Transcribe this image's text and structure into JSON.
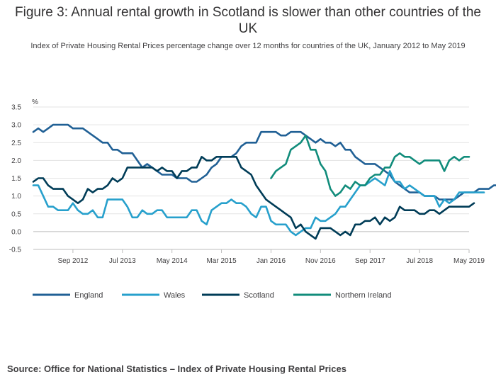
{
  "title": "Figure 3: Annual rental growth in Scotland is slower than other countries of the UK",
  "subtitle": "Index of Private Housing Rental Prices percentage change over 12 months for countries of the UK, January 2012 to May 2019",
  "source": "Source: Office for National Statistics – Index of Private Housing Rental Prices",
  "chart_data": {
    "type": "line",
    "ylabel": "%",
    "ylim": [
      -0.5,
      3.5
    ],
    "yticks": [
      "3.5",
      "3.0",
      "2.5",
      "2.0",
      "1.5",
      "1.0",
      "0.5",
      "0.0",
      "-0.5"
    ],
    "xlim": [
      "2012-01",
      "2019-05"
    ],
    "xticks": [
      {
        "date": "2012-09",
        "label": "Sep 2012"
      },
      {
        "date": "2013-07",
        "label": "Jul 2013"
      },
      {
        "date": "2014-05",
        "label": "May 2014"
      },
      {
        "date": "2015-03",
        "label": "Mar 2015"
      },
      {
        "date": "2016-01",
        "label": "Jan 2016"
      },
      {
        "date": "2016-11",
        "label": "Nov 2016"
      },
      {
        "date": "2017-09",
        "label": "Sep 2017"
      },
      {
        "date": "2018-07",
        "label": "Jul 2018"
      },
      {
        "date": "2019-05",
        "label": "May 2019"
      }
    ],
    "grid": true,
    "legend_position": "bottom",
    "series": [
      {
        "name": "England",
        "color": "#206095",
        "start": "2012-01",
        "values": [
          2.8,
          2.9,
          2.8,
          2.9,
          3.0,
          3.0,
          3.0,
          3.0,
          2.9,
          2.9,
          2.9,
          2.8,
          2.7,
          2.6,
          2.5,
          2.5,
          2.3,
          2.3,
          2.2,
          2.2,
          2.2,
          2.0,
          1.8,
          1.9,
          1.8,
          1.7,
          1.6,
          1.6,
          1.6,
          1.5,
          1.5,
          1.5,
          1.4,
          1.4,
          1.5,
          1.6,
          1.8,
          1.9,
          2.1,
          2.1,
          2.1,
          2.2,
          2.4,
          2.5,
          2.5,
          2.5,
          2.8,
          2.8,
          2.8,
          2.8,
          2.7,
          2.7,
          2.8,
          2.8,
          2.8,
          2.7,
          2.6,
          2.5,
          2.6,
          2.5,
          2.5,
          2.4,
          2.5,
          2.3,
          2.3,
          2.1,
          2.0,
          1.9,
          1.9,
          1.9,
          1.8,
          1.7,
          1.6,
          1.4,
          1.3,
          1.2,
          1.1,
          1.1,
          1.1,
          1.0,
          1.0,
          1.0,
          0.9,
          0.9,
          0.9,
          0.9,
          1.0,
          1.1,
          1.1,
          1.1,
          1.2,
          1.2,
          1.2,
          1.3,
          1.3
        ]
      },
      {
        "name": "Wales",
        "color": "#27a0cc",
        "start": "2012-01",
        "values": [
          1.3,
          1.3,
          1.0,
          0.7,
          0.7,
          0.6,
          0.6,
          0.6,
          0.8,
          0.6,
          0.5,
          0.5,
          0.6,
          0.4,
          0.4,
          0.9,
          0.9,
          0.9,
          0.9,
          0.7,
          0.4,
          0.4,
          0.6,
          0.5,
          0.5,
          0.6,
          0.6,
          0.4,
          0.4,
          0.4,
          0.4,
          0.4,
          0.6,
          0.6,
          0.3,
          0.2,
          0.6,
          0.7,
          0.8,
          0.8,
          0.9,
          0.8,
          0.8,
          0.7,
          0.5,
          0.4,
          0.7,
          0.7,
          0.3,
          0.2,
          0.2,
          0.2,
          0.0,
          -0.1,
          0.0,
          0.1,
          0.1,
          0.4,
          0.3,
          0.3,
          0.4,
          0.5,
          0.7,
          0.7,
          0.9,
          1.1,
          1.3,
          1.3,
          1.4,
          1.5,
          1.4,
          1.3,
          1.7,
          1.4,
          1.4,
          1.2,
          1.3,
          1.2,
          1.1,
          1.0,
          1.0,
          1.0,
          0.7,
          0.9,
          0.8,
          0.9,
          1.1,
          1.1,
          1.1,
          1.1,
          1.1,
          1.1
        ]
      },
      {
        "name": "Scotland",
        "color": "#003c57",
        "start": "2012-01",
        "values": [
          1.4,
          1.5,
          1.5,
          1.3,
          1.2,
          1.2,
          1.2,
          1.0,
          0.9,
          0.8,
          0.9,
          1.2,
          1.1,
          1.2,
          1.2,
          1.3,
          1.5,
          1.4,
          1.5,
          1.8,
          1.8,
          1.8,
          1.8,
          1.8,
          1.8,
          1.7,
          1.8,
          1.7,
          1.7,
          1.5,
          1.7,
          1.7,
          1.8,
          1.8,
          2.1,
          2.0,
          2.0,
          2.1,
          2.1,
          2.1,
          2.1,
          2.1,
          1.8,
          1.7,
          1.6,
          1.3,
          1.1,
          0.9,
          0.8,
          0.7,
          0.6,
          0.5,
          0.4,
          0.1,
          0.2,
          0.0,
          -0.1,
          -0.2,
          0.1,
          0.1,
          0.1,
          0.0,
          -0.1,
          0.0,
          -0.1,
          0.2,
          0.2,
          0.3,
          0.3,
          0.4,
          0.2,
          0.4,
          0.3,
          0.4,
          0.7,
          0.6,
          0.6,
          0.6,
          0.5,
          0.5,
          0.6,
          0.6,
          0.5,
          0.6,
          0.7,
          0.7,
          0.7,
          0.7,
          0.7,
          0.8
        ]
      },
      {
        "name": "Northern Ireland",
        "color": "#118c7b",
        "start": "2016-01",
        "values": [
          1.5,
          1.7,
          1.8,
          1.9,
          2.3,
          2.4,
          2.5,
          2.7,
          2.3,
          2.3,
          1.9,
          1.7,
          1.2,
          1.0,
          1.1,
          1.3,
          1.2,
          1.4,
          1.3,
          1.3,
          1.5,
          1.6,
          1.6,
          1.8,
          1.8,
          2.1,
          2.2,
          2.1,
          2.1,
          2.0,
          1.9,
          2.0,
          2.0,
          2.0,
          2.0,
          1.7,
          2.0,
          2.1,
          2.0,
          2.1,
          2.1
        ]
      }
    ]
  }
}
